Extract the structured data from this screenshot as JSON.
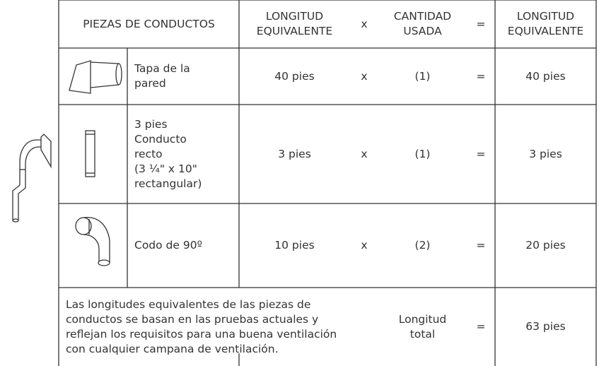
{
  "header": {
    "parts": "PIEZAS DE CONDUCTOS",
    "length": [
      "LONGITUD",
      "EQUIVALENTE"
    ],
    "times": "x",
    "quantity": [
      "CANTIDAD",
      "USADA"
    ],
    "equals": "=",
    "total": [
      "LONGITUD",
      "EQUIVALENTE"
    ]
  },
  "rows": [
    {
      "description": [
        "Tapa de la",
        "pared"
      ],
      "length": "40 pies",
      "times": "x",
      "quantity": "(1)",
      "equals": "=",
      "total": "40 pies"
    },
    {
      "description": [
        "3 pies",
        "Conducto",
        "recto",
        "(3 ¼\" x 10\"",
        "rectangular)"
      ],
      "length": "3 pies",
      "times": "x",
      "quantity": "(1)",
      "equals": "=",
      "total": "3 pies"
    },
    {
      "description": [
        "Codo de 90º"
      ],
      "length": "10 pies",
      "times": "x",
      "quantity": "(2)",
      "equals": "=",
      "total": "20 pies"
    }
  ],
  "footer": {
    "note": [
      "Las longitudes equivalentes de las piezas de",
      "conductos se basan en las pruebas actuales y",
      "reflejan los requisitos para una buena ventilación",
      "con cualquier campana de ventilación."
    ],
    "label": [
      "Longitud",
      "total"
    ],
    "equals": "=",
    "total": "63 pies"
  }
}
